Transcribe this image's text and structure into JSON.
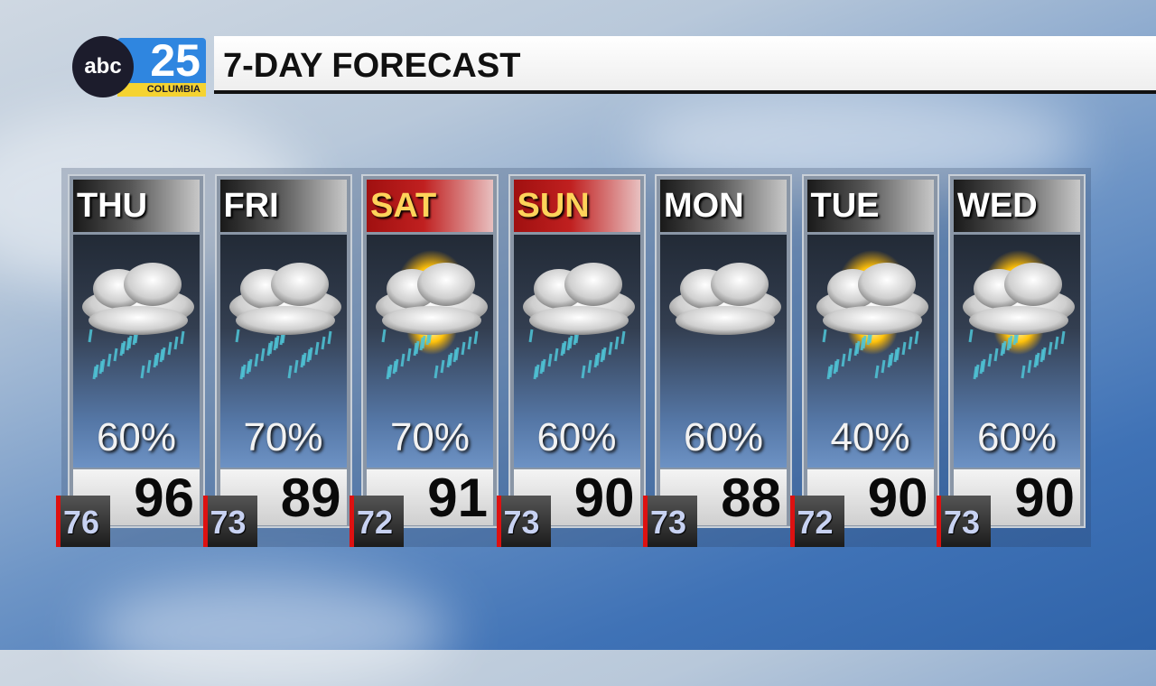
{
  "logo": {
    "network": "abc",
    "channel": "25",
    "city": "COLUMBIA"
  },
  "title": "7-DAY FORECAST",
  "colors": {
    "weekend_header": "#c02020",
    "weekend_text": "#ffd35a",
    "low_accent": "#d11111",
    "logo_blue": "#2f86e0",
    "logo_yellow": "#f5d331"
  },
  "days": [
    {
      "day": "THU",
      "icon": "rain-cloud-icon",
      "sun": false,
      "pop": "60%",
      "high": "96",
      "low": "76",
      "weekend": false
    },
    {
      "day": "FRI",
      "icon": "rain-cloud-icon",
      "sun": false,
      "pop": "70%",
      "high": "89",
      "low": "73",
      "weekend": false
    },
    {
      "day": "SAT",
      "icon": "sun-cloud-rain-icon",
      "sun": true,
      "pop": "70%",
      "high": "91",
      "low": "72",
      "weekend": true
    },
    {
      "day": "SUN",
      "icon": "rain-cloud-icon",
      "sun": false,
      "pop": "60%",
      "high": "90",
      "low": "73",
      "weekend": true
    },
    {
      "day": "MON",
      "icon": "cloud-icon",
      "sun": false,
      "pop": "60%",
      "high": "88",
      "low": "73",
      "weekend": false,
      "norain": true
    },
    {
      "day": "TUE",
      "icon": "sun-cloud-rain-icon",
      "sun": true,
      "pop": "40%",
      "high": "90",
      "low": "72",
      "weekend": false
    },
    {
      "day": "WED",
      "icon": "sun-cloud-rain-icon",
      "sun": true,
      "pop": "60%",
      "high": "90",
      "low": "73",
      "weekend": false
    }
  ]
}
